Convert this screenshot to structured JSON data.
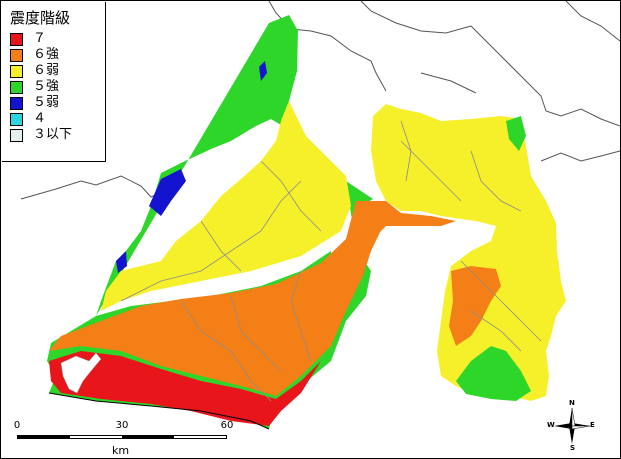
{
  "legend": {
    "title": "震度階級",
    "items": [
      {
        "label": "７",
        "color": "#e8161a"
      },
      {
        "label": "６強",
        "color": "#f57f17"
      },
      {
        "label": "６弱",
        "color": "#f6f02a"
      },
      {
        "label": "５強",
        "color": "#2ed62a"
      },
      {
        "label": "５弱",
        "color": "#1414d0"
      },
      {
        "label": "４",
        "color": "#2ad7e0"
      },
      {
        "label": "３以下",
        "color": "#e4f0f0"
      }
    ]
  },
  "scale": {
    "ticks": [
      "0",
      "30",
      "60"
    ],
    "unit": "km"
  },
  "compass": {
    "n": "N",
    "s": "S",
    "e": "E",
    "w": "W"
  },
  "colors": {
    "intensity_7": "#e8161a",
    "intensity_6_strong": "#f57f17",
    "intensity_6_weak": "#f6f02a",
    "intensity_5_strong": "#2ed62a",
    "intensity_5_weak": "#1414d0",
    "border": "#8c8c8c",
    "sea": "#ffffff",
    "land_outside": "#ffffff"
  }
}
